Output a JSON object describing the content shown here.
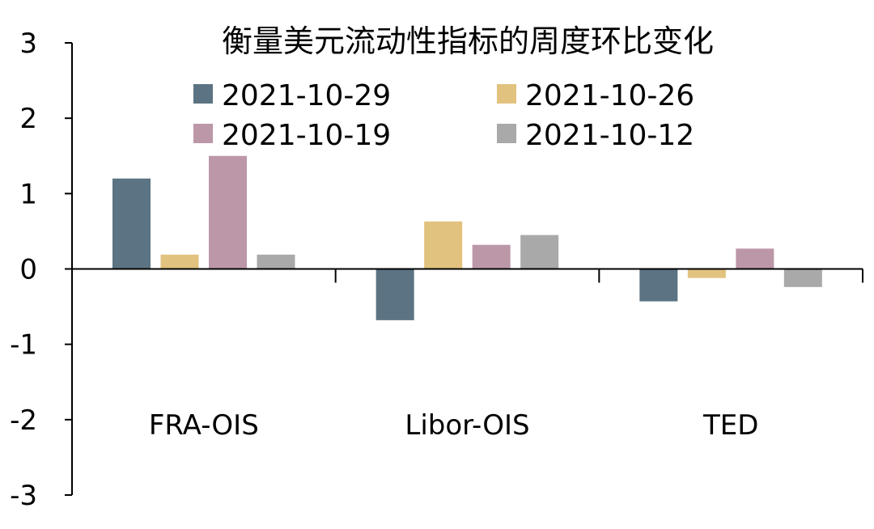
{
  "chart_data": {
    "type": "bar",
    "title": "衡量美元流动性指标的周度环比变化",
    "categories": [
      "FRA-OIS",
      "Libor-OIS",
      "TED"
    ],
    "series": [
      {
        "name": "2021-10-29",
        "color": "#5b7382",
        "values": [
          1.2,
          -0.68,
          -0.43
        ]
      },
      {
        "name": "2021-10-26",
        "color": "#e2c27f",
        "values": [
          0.19,
          0.63,
          -0.12
        ]
      },
      {
        "name": "2021-10-19",
        "color": "#bc97a8",
        "values": [
          1.5,
          0.32,
          0.27
        ]
      },
      {
        "name": "2021-10-12",
        "color": "#a9a9a9",
        "values": [
          0.19,
          0.45,
          -0.24
        ]
      }
    ],
    "ylim": [
      -3,
      3
    ],
    "yticks": [
      "3",
      "2",
      "1",
      "0",
      "-1",
      "-2",
      "-3"
    ],
    "xlabel": "",
    "ylabel": "",
    "legend_position": "top",
    "grid": false
  }
}
